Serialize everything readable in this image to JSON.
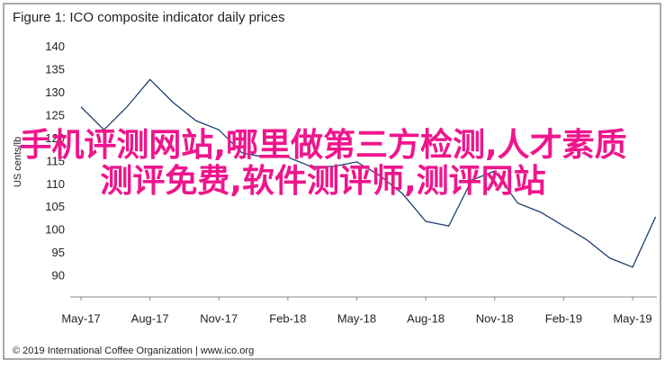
{
  "chart_data": {
    "type": "line",
    "title": "Figure 1: ICO composite indicator daily prices",
    "y_label": "US cents/lb",
    "footer": "© 2019 International Coffee Organization | www.ico.org",
    "annotation": "手机评测网站,哪里做第三方检测,人才素质测评免费,软件测评师,测评网站",
    "x": [
      "2017-05",
      "2017-06",
      "2017-07",
      "2017-08",
      "2017-09",
      "2017-10",
      "2017-11",
      "2017-12",
      "2018-01",
      "2018-02",
      "2018-03",
      "2018-04",
      "2018-05",
      "2018-06",
      "2018-07",
      "2018-08",
      "2018-09",
      "2018-10",
      "2018-11",
      "2018-12",
      "2019-01",
      "2019-02",
      "2019-03",
      "2019-04",
      "2019-05",
      "2019-06"
    ],
    "series": [
      {
        "name": "ICO composite indicator",
        "color": "#1f3f6e",
        "values": [
          127,
          122,
          127,
          133,
          128,
          124,
          122,
          117,
          116,
          116,
          114,
          114,
          115,
          112,
          108,
          102,
          101,
          111,
          113,
          106,
          104,
          101,
          98,
          94,
          92,
          103
        ]
      }
    ],
    "ylim": [
      85.5,
      142.5
    ],
    "yticks": [
      90,
      95,
      100,
      105,
      110,
      115,
      120,
      125,
      130,
      135,
      140
    ],
    "xticks": [
      {
        "value": "2017-05",
        "label": "May-17"
      },
      {
        "value": "2017-08",
        "label": "Aug-17"
      },
      {
        "value": "2017-11",
        "label": "Nov-17"
      },
      {
        "value": "2018-02",
        "label": "Feb-18"
      },
      {
        "value": "2018-05",
        "label": "May-18"
      },
      {
        "value": "2018-08",
        "label": "Aug-18"
      },
      {
        "value": "2018-11",
        "label": "Nov-18"
      },
      {
        "value": "2019-02",
        "label": "Feb-19"
      },
      {
        "value": "2019-05",
        "label": "May-19"
      }
    ]
  }
}
